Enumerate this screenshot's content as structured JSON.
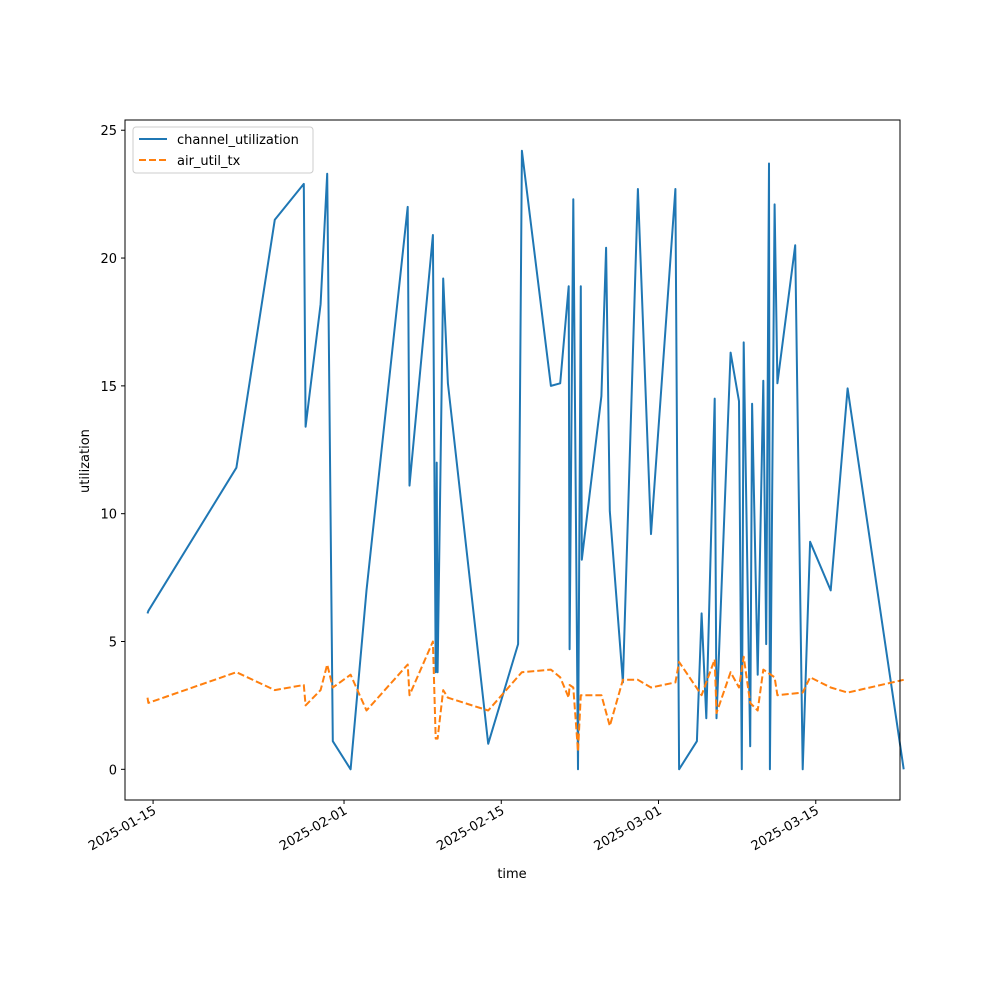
{
  "chart_data": {
    "type": "line",
    "title": "",
    "xlabel": "time",
    "ylabel": "utilization",
    "ylim": [
      -1.2,
      25.4
    ],
    "xlim": [
      "2025-01-12T12:00",
      "2025-03-22T12:00"
    ],
    "y_ticks": [
      0,
      5,
      10,
      15,
      20,
      25
    ],
    "x_ticks": [
      "2025-01-15",
      "2025-02-01",
      "2025-02-15",
      "2025-03-01",
      "2025-03-15"
    ],
    "grid": false,
    "legend_position": "upper-left",
    "series": [
      {
        "name": "channel_utilization",
        "color": "#1f77b4",
        "dash": "solid",
        "points": [
          [
            "2025-01-14T12:00",
            6.1
          ],
          [
            "2025-01-14T14:00",
            6.2
          ],
          [
            "2025-01-22T10:00",
            11.8
          ],
          [
            "2025-01-25T20:00",
            21.5
          ],
          [
            "2025-01-28T10:00",
            22.9
          ],
          [
            "2025-01-28T14:00",
            13.4
          ],
          [
            "2025-01-29T22:00",
            18.2
          ],
          [
            "2025-01-30T12:00",
            23.3
          ],
          [
            "2025-01-31T00:00",
            1.1
          ],
          [
            "2025-02-01T14:00",
            0.0
          ],
          [
            "2025-02-03T00:00",
            7.0
          ],
          [
            "2025-02-06T16:00",
            22.0
          ],
          [
            "2025-02-06T20:00",
            11.1
          ],
          [
            "2025-02-08T22:00",
            20.9
          ],
          [
            "2025-02-09T04:00",
            3.8
          ],
          [
            "2025-02-09T06:00",
            12.0
          ],
          [
            "2025-02-09T08:00",
            3.8
          ],
          [
            "2025-02-09T20:00",
            19.2
          ],
          [
            "2025-02-10T06:00",
            15.1
          ],
          [
            "2025-02-13T20:00",
            1.0
          ],
          [
            "2025-02-16T12:00",
            4.9
          ],
          [
            "2025-02-16T20:00",
            24.2
          ],
          [
            "2025-02-19T10:00",
            15.0
          ],
          [
            "2025-02-20T06:00",
            15.1
          ],
          [
            "2025-02-21T00:00",
            18.9
          ],
          [
            "2025-02-21T02:00",
            4.7
          ],
          [
            "2025-02-21T10:00",
            22.3
          ],
          [
            "2025-02-21T20:00",
            0.0
          ],
          [
            "2025-02-22T02:00",
            18.9
          ],
          [
            "2025-02-22T04:00",
            8.2
          ],
          [
            "2025-02-23T22:00",
            14.6
          ],
          [
            "2025-02-24T08:00",
            20.4
          ],
          [
            "2025-02-24T16:00",
            10.1
          ],
          [
            "2025-02-25T20:00",
            3.4
          ],
          [
            "2025-02-27T04:00",
            22.7
          ],
          [
            "2025-02-28T08:00",
            9.2
          ],
          [
            "2025-03-02T12:00",
            22.7
          ],
          [
            "2025-03-02T20:00",
            0.0
          ],
          [
            "2025-03-04T10:00",
            1.1
          ],
          [
            "2025-03-04T20:00",
            6.1
          ],
          [
            "2025-03-05T06:00",
            2.0
          ],
          [
            "2025-03-06T00:00",
            14.5
          ],
          [
            "2025-03-06T04:00",
            2.0
          ],
          [
            "2025-03-07T10:00",
            16.3
          ],
          [
            "2025-03-08T04:00",
            14.4
          ],
          [
            "2025-03-08T10:00",
            0.0
          ],
          [
            "2025-03-08T14:00",
            16.7
          ],
          [
            "2025-03-09T04:00",
            0.9
          ],
          [
            "2025-03-09T08:00",
            14.3
          ],
          [
            "2025-03-09T20:00",
            3.7
          ],
          [
            "2025-03-10T08:00",
            15.2
          ],
          [
            "2025-03-10T14:00",
            4.9
          ],
          [
            "2025-03-10T20:00",
            23.7
          ],
          [
            "2025-03-10T22:00",
            0.0
          ],
          [
            "2025-03-11T08:00",
            22.1
          ],
          [
            "2025-03-11T14:00",
            15.1
          ],
          [
            "2025-03-13T04:00",
            20.5
          ],
          [
            "2025-03-13T20:00",
            0.0
          ],
          [
            "2025-03-14T12:00",
            8.9
          ],
          [
            "2025-03-16T08:00",
            7.0
          ],
          [
            "2025-03-17T20:00",
            14.9
          ],
          [
            "2025-03-22T20:00",
            0.0
          ]
        ]
      },
      {
        "name": "air_util_tx",
        "color": "#ff7f0e",
        "dash": "dashed",
        "points": [
          [
            "2025-01-14T12:00",
            2.8
          ],
          [
            "2025-01-14T14:00",
            2.6
          ],
          [
            "2025-01-22T10:00",
            3.8
          ],
          [
            "2025-01-25T20:00",
            3.1
          ],
          [
            "2025-01-28T10:00",
            3.3
          ],
          [
            "2025-01-28T14:00",
            2.5
          ],
          [
            "2025-01-29T22:00",
            3.1
          ],
          [
            "2025-01-30T12:00",
            4.1
          ],
          [
            "2025-01-31T00:00",
            3.2
          ],
          [
            "2025-02-01T14:00",
            3.7
          ],
          [
            "2025-02-03T00:00",
            2.3
          ],
          [
            "2025-02-06T16:00",
            4.1
          ],
          [
            "2025-02-06T20:00",
            2.9
          ],
          [
            "2025-02-08T22:00",
            5.0
          ],
          [
            "2025-02-09T04:00",
            1.2
          ],
          [
            "2025-02-09T08:00",
            1.2
          ],
          [
            "2025-02-09T20:00",
            3.1
          ],
          [
            "2025-02-10T06:00",
            2.8
          ],
          [
            "2025-02-13T20:00",
            2.3
          ],
          [
            "2025-02-16T20:00",
            3.8
          ],
          [
            "2025-02-19T10:00",
            3.9
          ],
          [
            "2025-02-20T06:00",
            3.6
          ],
          [
            "2025-02-21T00:00",
            2.8
          ],
          [
            "2025-02-21T02:00",
            3.3
          ],
          [
            "2025-02-21T10:00",
            3.2
          ],
          [
            "2025-02-21T20:00",
            0.7
          ],
          [
            "2025-02-22T02:00",
            2.9
          ],
          [
            "2025-02-23T22:00",
            2.9
          ],
          [
            "2025-02-24T16:00",
            1.7
          ],
          [
            "2025-02-25T20:00",
            3.5
          ],
          [
            "2025-02-27T04:00",
            3.5
          ],
          [
            "2025-02-28T08:00",
            3.2
          ],
          [
            "2025-03-02T12:00",
            3.4
          ],
          [
            "2025-03-02T20:00",
            4.2
          ],
          [
            "2025-03-04T20:00",
            2.9
          ],
          [
            "2025-03-05T06:00",
            3.4
          ],
          [
            "2025-03-06T00:00",
            4.3
          ],
          [
            "2025-03-06T04:00",
            2.2
          ],
          [
            "2025-03-07T10:00",
            3.8
          ],
          [
            "2025-03-08T04:00",
            3.2
          ],
          [
            "2025-03-08T14:00",
            4.4
          ],
          [
            "2025-03-09T04:00",
            2.6
          ],
          [
            "2025-03-09T20:00",
            2.3
          ],
          [
            "2025-03-10T08:00",
            3.9
          ],
          [
            "2025-03-11T08:00",
            3.6
          ],
          [
            "2025-03-11T14:00",
            2.9
          ],
          [
            "2025-03-13T20:00",
            3.0
          ],
          [
            "2025-03-14T12:00",
            3.6
          ],
          [
            "2025-03-16T08:00",
            3.2
          ],
          [
            "2025-03-17T20:00",
            3.0
          ],
          [
            "2025-03-22T20:00",
            3.5
          ]
        ]
      }
    ]
  }
}
